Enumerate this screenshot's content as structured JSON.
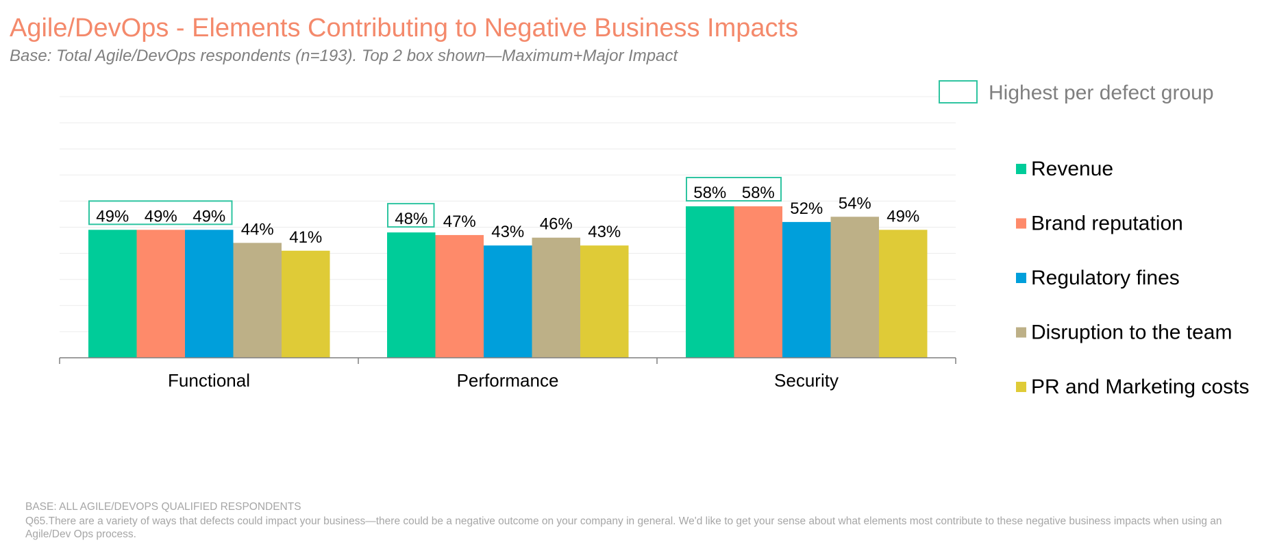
{
  "page": {
    "title": "Agile/DevOps - Elements Contributing to Negative Business Impacts",
    "subtitle": "Base: Total Agile/DevOps respondents (n=193). Top 2 box shown—Maximum+Major Impact",
    "footnote_base": "BASE: ALL AGILE/DEVOPS QUALIFIED RESPONDENTS",
    "footnote_question": "Q65.There are a variety of ways that defects could impact your business—there could be a negative outcome on your company in general. We'd like to get your sense about what elements most contribute to these negative business impacts when using an Agile/Dev Ops process."
  },
  "colors": {
    "title": "#f4896b",
    "highlight_box": "#2ec4a0",
    "grid": "#ececec",
    "axis": "#7f7f7f",
    "highlight_label": "#7f7f7f"
  },
  "chart_data": {
    "type": "bar",
    "categories": [
      "Functional",
      "Performance",
      "Security"
    ],
    "series": [
      {
        "name": "Revenue",
        "color": "#00cc99",
        "values": [
          49,
          48,
          58
        ]
      },
      {
        "name": "Brand reputation",
        "color": "#fe8a6a",
        "values": [
          49,
          47,
          58
        ]
      },
      {
        "name": "Regulatory fines",
        "color": "#009fdb",
        "values": [
          49,
          43,
          52
        ]
      },
      {
        "name": "Disruption to the team",
        "color": "#bdb087",
        "values": [
          44,
          46,
          54
        ]
      },
      {
        "name": "PR and Marketing costs",
        "color": "#dfcb37",
        "values": [
          41,
          43,
          49
        ]
      }
    ],
    "ylim": [
      0,
      100
    ],
    "value_suffix": "%",
    "grid": true,
    "legend_position": "right",
    "highlight_legend_label": "Highest per defect group",
    "highlighted": [
      [
        0,
        1,
        2
      ],
      [
        0
      ],
      [
        0,
        1
      ]
    ]
  }
}
